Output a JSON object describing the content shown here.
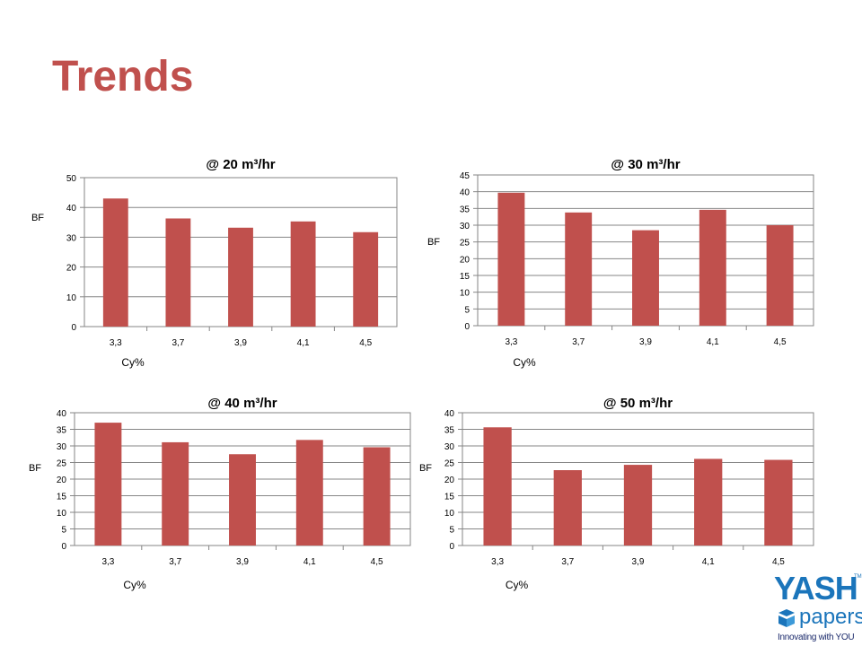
{
  "slide": {
    "title": "Trends"
  },
  "colors": {
    "title": "#c0504d",
    "bar": "#c0504d",
    "grid": "#868686",
    "logo": "#1b75bb"
  },
  "logo": {
    "brand": "YASH",
    "tm": "TM",
    "product": "papers",
    "tagline": "Innovating with YOU"
  },
  "chart_data": [
    {
      "type": "bar",
      "title": "@ 20 m³/hr",
      "xlabel": "Cy%",
      "ylabel": "BF",
      "categories": [
        "3,3",
        "3,7",
        "3,9",
        "4,1",
        "4,5"
      ],
      "values": [
        43,
        36.3,
        33.2,
        35.3,
        31.7
      ],
      "ylim": [
        0,
        50
      ],
      "yticks": [
        "0",
        "10",
        "20",
        "30",
        "40",
        "50"
      ],
      "grid": true
    },
    {
      "type": "bar",
      "title": "@ 30 m³/hr",
      "xlabel": "Cy%",
      "ylabel": "BF",
      "categories": [
        "3,3",
        "3,7",
        "3,9",
        "4,1",
        "4,5"
      ],
      "values": [
        39.7,
        33.8,
        28.5,
        34.6,
        30
      ],
      "ylim": [
        0,
        45
      ],
      "yticks": [
        "0",
        "5",
        "10",
        "15",
        "20",
        "25",
        "30",
        "35",
        "40",
        "45"
      ],
      "grid": true
    },
    {
      "type": "bar",
      "title": "@ 40 m³/hr",
      "xlabel": "Cy%",
      "ylabel": "BF",
      "categories": [
        "3,3",
        "3,7",
        "3,9",
        "4,1",
        "4,5"
      ],
      "values": [
        37,
        31.1,
        27.5,
        31.8,
        29.6
      ],
      "ylim": [
        0,
        40
      ],
      "yticks": [
        "0",
        "5",
        "10",
        "15",
        "20",
        "25",
        "30",
        "35",
        "40"
      ],
      "grid": true
    },
    {
      "type": "bar",
      "title": "@ 50 m³/hr",
      "xlabel": "Cy%",
      "ylabel": "BF",
      "categories": [
        "3,3",
        "3,7",
        "3,9",
        "4,1",
        "4,5"
      ],
      "values": [
        35.6,
        22.7,
        24.3,
        26.1,
        25.8
      ],
      "ylim": [
        0,
        40
      ],
      "yticks": [
        "0",
        "5",
        "10",
        "15",
        "20",
        "25",
        "30",
        "35",
        "40"
      ],
      "grid": true
    }
  ]
}
